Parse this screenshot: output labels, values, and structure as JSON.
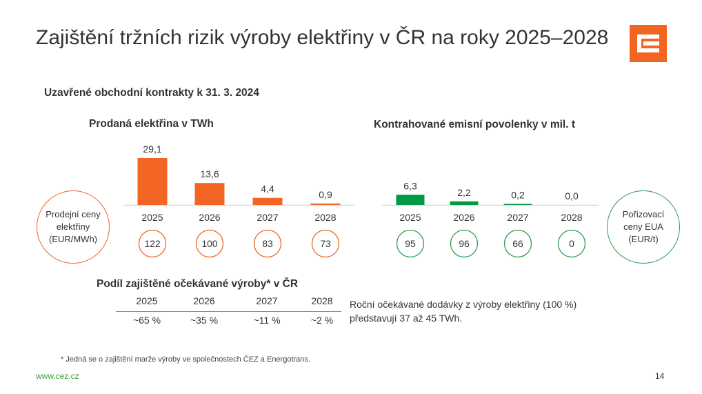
{
  "title": "Zajištění tržních rizik výroby elektřiny v ČR na roky 2025–2028",
  "subtitle": "Uzavřené obchodní kontrakty k 31. 3. 2024",
  "colors": {
    "orange": "#f26522",
    "green": "#009a44",
    "grid": "#d9d9d9"
  },
  "chart_data": [
    {
      "type": "bar",
      "title": "Prodaná elektřina v TWh",
      "categories": [
        "2025",
        "2026",
        "2027",
        "2028"
      ],
      "values": [
        29.1,
        13.6,
        4.4,
        0.9
      ],
      "value_labels": [
        "29,1",
        "13,6",
        "4,4",
        "0,9"
      ],
      "ylim": [
        0,
        29.1
      ],
      "price_circle_label": "Prodejní ceny elektřiny (EUR/MWh)",
      "prices": [
        "122",
        "100",
        "83",
        "73"
      ]
    },
    {
      "type": "bar",
      "title": "Kontrahované emisní povolenky v mil. t",
      "categories": [
        "2025",
        "2026",
        "2027",
        "2028"
      ],
      "values": [
        6.3,
        2.2,
        0.2,
        0.0
      ],
      "value_labels": [
        "6,3",
        "2,2",
        "0,2",
        "0,0"
      ],
      "ylim": [
        0,
        29.1
      ],
      "price_circle_label": "Pořizovací ceny EUA (EUR/t)",
      "prices": [
        "95",
        "96",
        "66",
        "0"
      ]
    }
  ],
  "hedge": {
    "title": "Podíl zajištěné očekávané výroby* v ČR",
    "years": [
      "2025",
      "2026",
      "2027",
      "2028"
    ],
    "shares": [
      "~65 %",
      "~35 %",
      "~11 %",
      "~2 %"
    ]
  },
  "note": "Roční očekávané dodávky z výroby elektřiny (100 %) představují 37 až 45 TWh.",
  "footnote": "* Jedná se o zajištění marže výroby ve společnostech ČEZ a Energotrans.",
  "website": "www.cez.cz",
  "page_number": "14"
}
